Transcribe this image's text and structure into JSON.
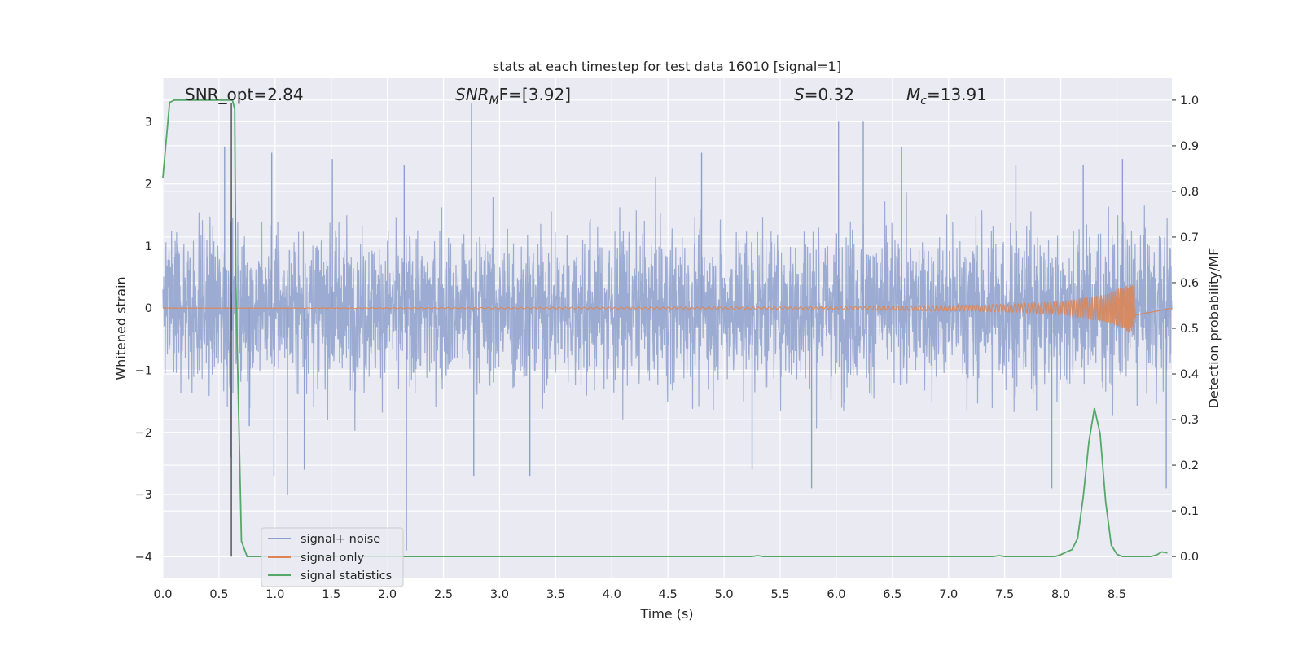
{
  "chart_data": {
    "type": "line",
    "title": "stats at each timestep for test data 16010 [signal=1]",
    "xlabel": "Time (s)",
    "ylabel_left": "Whitened strain",
    "ylabel_right": "Detection probability/MF",
    "xlim": [
      0.0,
      8.99
    ],
    "ylim_left": [
      -4.35,
      3.7
    ],
    "ylim_right": [
      -0.048,
      1.048
    ],
    "x_ticks": [
      "0.0",
      "0.5",
      "1.0",
      "1.5",
      "2.0",
      "2.5",
      "3.0",
      "3.5",
      "4.0",
      "4.5",
      "5.0",
      "5.5",
      "6.0",
      "6.5",
      "7.0",
      "7.5",
      "8.0",
      "8.5"
    ],
    "y_left_ticks": [
      "3",
      "2",
      "1",
      "0",
      "−1",
      "−2",
      "−3",
      "−4"
    ],
    "y_right_ticks": [
      "1.0",
      "0.9",
      "0.8",
      "0.7",
      "0.6",
      "0.5",
      "0.4",
      "0.3",
      "0.2",
      "0.1",
      "0.0"
    ],
    "annotations": {
      "snr_opt": "SNR_opt=2.84",
      "snr_mf_name": "SNR",
      "snr_mf_sub": "M",
      "snr_mf_rest": "F=[3.92]",
      "s_name": "S",
      "s_value": "=0.32",
      "mc_name": "M",
      "mc_sub": "c",
      "mc_value": "=13.91"
    },
    "grid": true,
    "legend_position": "lower-left",
    "series": [
      {
        "name": "signal+ noise",
        "axis": "left",
        "color": "#8da0cb",
        "description": "whitened noisy strain, roughly within [-1.2, 1.3] with spikes to about 3.3 and -3.9",
        "baseline_range": [
          -1.2,
          1.3
        ],
        "spikes": [
          [
            0.55,
            2.6
          ],
          [
            0.6,
            -2.4
          ],
          [
            0.77,
            -1.9
          ],
          [
            0.97,
            2.5
          ],
          [
            0.99,
            -2.7
          ],
          [
            1.11,
            -3.0
          ],
          [
            1.26,
            -2.6
          ],
          [
            1.51,
            2.4
          ],
          [
            2.15,
            2.3
          ],
          [
            2.17,
            -3.9
          ],
          [
            2.75,
            3.3
          ],
          [
            2.77,
            -2.7
          ],
          [
            3.27,
            -2.7
          ],
          [
            4.8,
            2.5
          ],
          [
            5.25,
            -2.6
          ],
          [
            5.78,
            -2.9
          ],
          [
            6.02,
            3.0
          ],
          [
            6.24,
            3.0
          ],
          [
            6.58,
            2.6
          ],
          [
            7.6,
            2.3
          ],
          [
            7.92,
            -2.9
          ],
          [
            8.2,
            2.3
          ],
          [
            8.55,
            2.4
          ],
          [
            8.94,
            -2.9
          ]
        ]
      },
      {
        "name": "signal only",
        "axis": "left",
        "color": "#dd8452",
        "description": "chirp: near zero amplitude growing toward merger at about 8.65 s",
        "amplitude_envelope": [
          [
            0.0,
            0.0
          ],
          [
            6.0,
            0.02
          ],
          [
            7.5,
            0.06
          ],
          [
            8.0,
            0.1
          ],
          [
            8.4,
            0.22
          ],
          [
            8.6,
            0.38
          ],
          [
            8.66,
            0.45
          ],
          [
            8.67,
            0.0
          ]
        ]
      },
      {
        "name": "signal statistics",
        "axis": "right",
        "color": "#55a868",
        "x": [
          0.0,
          0.06,
          0.1,
          0.2,
          0.3,
          0.4,
          0.5,
          0.55,
          0.6,
          0.62,
          0.64,
          0.65,
          0.7,
          0.75,
          1.0,
          2.0,
          3.0,
          4.0,
          5.0,
          5.25,
          5.3,
          5.35,
          5.5,
          6.0,
          7.0,
          7.4,
          7.45,
          7.5,
          7.95,
          8.0,
          8.05,
          8.1,
          8.15,
          8.2,
          8.25,
          8.3,
          8.35,
          8.4,
          8.45,
          8.5,
          8.55,
          8.6,
          8.7,
          8.8,
          8.85,
          8.9,
          8.95
        ],
        "y": [
          0.83,
          0.995,
          1.0,
          1.0,
          1.0,
          1.0,
          1.0,
          1.0,
          1.0,
          1.0,
          0.98,
          0.6,
          0.034,
          0.0,
          0.0,
          0.0,
          0.0,
          0.0,
          0.0,
          0.0,
          0.002,
          0.0,
          0.0,
          0.0,
          0.0,
          0.0,
          0.002,
          0.0,
          0.0,
          0.004,
          0.01,
          0.015,
          0.04,
          0.13,
          0.25,
          0.325,
          0.27,
          0.12,
          0.025,
          0.005,
          0.0,
          0.0,
          0.0,
          0.0,
          0.003,
          0.01,
          0.008
        ]
      }
    ],
    "vertical_marker_x": 0.61
  }
}
